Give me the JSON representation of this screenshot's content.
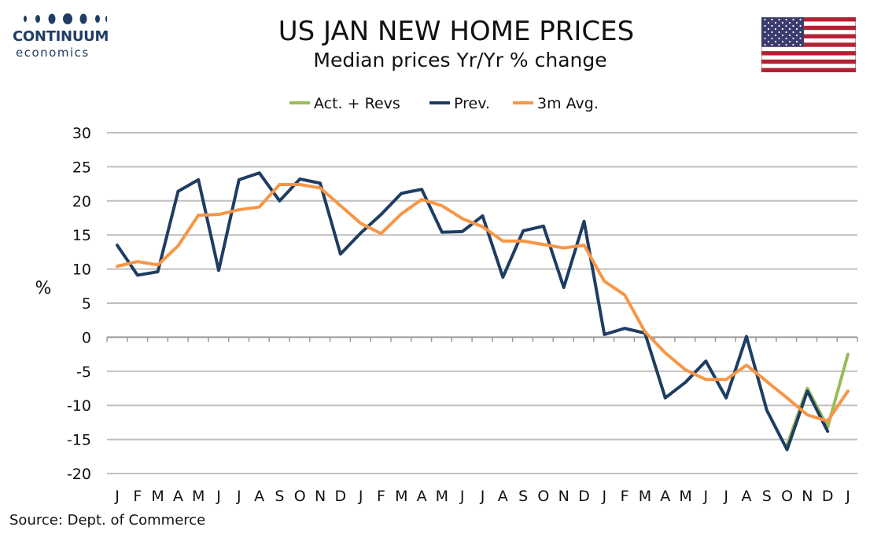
{
  "header": {
    "logo_name": "CONTINUUM",
    "logo_sub": "economics",
    "title": "US JAN NEW HOME PRICES",
    "subtitle": "Median prices Yr/Yr % change",
    "flag_icon": "us-flag-icon"
  },
  "footer": {
    "source": "Source: Dept. of Commerce"
  },
  "colors": {
    "actual": "#9bbb59",
    "previous": "#1f3d63",
    "avg": "#f79646",
    "grid": "#bfbfbf",
    "logo": "#1f3d63"
  },
  "chart_data": {
    "type": "line",
    "title": "US JAN NEW HOME PRICES",
    "subtitle": "Median prices Yr/Yr % change",
    "ylabel": "%",
    "xlabel": "",
    "ylim": [
      -20,
      30
    ],
    "yticks": [
      30,
      25,
      20,
      15,
      10,
      5,
      0,
      -5,
      -10,
      -15,
      -20
    ],
    "grid": true,
    "legend_position": "top-center",
    "categories": [
      "J",
      "F",
      "M",
      "A",
      "M",
      "J",
      "J",
      "A",
      "S",
      "O",
      "N",
      "D",
      "J",
      "F",
      "M",
      "A",
      "M",
      "J",
      "J",
      "A",
      "S",
      "O",
      "N",
      "D",
      "J",
      "F",
      "M",
      "A",
      "M",
      "J",
      "J",
      "A",
      "S",
      "O",
      "N",
      "D",
      "J"
    ],
    "series": [
      {
        "name": "Act. + Revs",
        "color": "#9bbb59",
        "values": [
          null,
          null,
          null,
          null,
          null,
          null,
          null,
          null,
          null,
          null,
          null,
          null,
          null,
          null,
          null,
          null,
          null,
          null,
          null,
          null,
          null,
          null,
          null,
          null,
          null,
          null,
          null,
          null,
          null,
          null,
          null,
          null,
          null,
          -15.8,
          -7.5,
          -13.2,
          -2.5
        ]
      },
      {
        "name": "Prev.",
        "color": "#1f3d63",
        "values": [
          13.5,
          9.1,
          9.6,
          21.4,
          23.1,
          9.8,
          23.1,
          24.1,
          20.0,
          23.2,
          22.6,
          12.2,
          15.3,
          18.0,
          21.1,
          21.7,
          15.4,
          15.5,
          17.8,
          8.8,
          15.6,
          16.3,
          7.3,
          17.0,
          0.4,
          1.3,
          0.6,
          -8.9,
          -6.6,
          -3.5,
          -8.9,
          0.1,
          -10.7,
          -16.5,
          -7.9,
          -13.8,
          null
        ]
      },
      {
        "name": "3m Avg.",
        "color": "#f79646",
        "values": [
          10.4,
          11.1,
          10.6,
          13.4,
          17.9,
          18.0,
          18.7,
          19.1,
          22.4,
          22.4,
          21.9,
          19.3,
          16.7,
          15.2,
          18.1,
          20.2,
          19.3,
          17.4,
          16.2,
          14.1,
          14.1,
          13.6,
          13.1,
          13.5,
          8.2,
          6.2,
          0.8,
          -2.3,
          -4.8,
          -6.2,
          -6.2,
          -4.1,
          -6.5,
          -8.9,
          -11.4,
          -12.3,
          -7.9
        ]
      }
    ]
  }
}
